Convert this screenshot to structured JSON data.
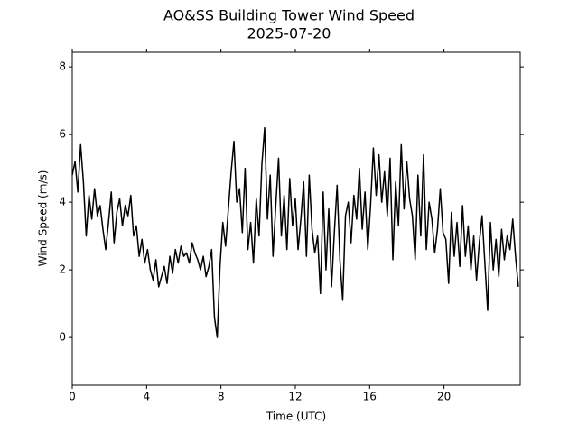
{
  "chart_data": {
    "type": "line",
    "title": "AO&SS Building Tower Wind Speed",
    "subtitle": "2025-07-20",
    "x_label": "Time (UTC)",
    "y_label": "Wind Speed (m/s)",
    "color": "#000000",
    "x": [
      0,
      0.15,
      0.3,
      0.45,
      0.6,
      0.75,
      0.9,
      1.05,
      1.2,
      1.35,
      1.5,
      1.65,
      1.8,
      1.95,
      2.1,
      2.25,
      2.4,
      2.55,
      2.7,
      2.85,
      3.0,
      3.15,
      3.3,
      3.45,
      3.6,
      3.75,
      3.9,
      4.05,
      4.2,
      4.35,
      4.5,
      4.65,
      4.8,
      4.95,
      5.1,
      5.25,
      5.4,
      5.55,
      5.7,
      5.85,
      6.0,
      6.15,
      6.3,
      6.45,
      6.6,
      6.75,
      6.9,
      7.05,
      7.2,
      7.35,
      7.5,
      7.65,
      7.8,
      7.95,
      8.1,
      8.25,
      8.4,
      8.55,
      8.7,
      8.85,
      9.0,
      9.15,
      9.3,
      9.45,
      9.6,
      9.75,
      9.9,
      10.05,
      10.2,
      10.35,
      10.5,
      10.65,
      10.8,
      10.95,
      11.1,
      11.25,
      11.4,
      11.55,
      11.7,
      11.85,
      12.0,
      12.15,
      12.3,
      12.45,
      12.6,
      12.75,
      12.9,
      13.05,
      13.2,
      13.35,
      13.5,
      13.65,
      13.8,
      13.95,
      14.1,
      14.25,
      14.4,
      14.55,
      14.7,
      14.85,
      15.0,
      15.15,
      15.3,
      15.45,
      15.6,
      15.75,
      15.9,
      16.05,
      16.2,
      16.35,
      16.5,
      16.65,
      16.8,
      16.95,
      17.1,
      17.25,
      17.4,
      17.55,
      17.7,
      17.85,
      18.0,
      18.15,
      18.3,
      18.45,
      18.6,
      18.75,
      18.9,
      19.05,
      19.2,
      19.35,
      19.5,
      19.65,
      19.8,
      19.95,
      20.1,
      20.25,
      20.4,
      20.55,
      20.7,
      20.85,
      21.0,
      21.15,
      21.3,
      21.45,
      21.6,
      21.75,
      21.9,
      22.05,
      22.2,
      22.35,
      22.5,
      22.65,
      22.8,
      22.95,
      23.1,
      23.25,
      23.4,
      23.55,
      23.7,
      23.85,
      24.0
    ],
    "values": [
      4.8,
      5.2,
      4.3,
      5.7,
      4.6,
      3.0,
      4.2,
      3.5,
      4.4,
      3.6,
      3.9,
      3.2,
      2.6,
      3.4,
      4.3,
      2.8,
      3.7,
      4.1,
      3.3,
      3.9,
      3.6,
      4.2,
      3.0,
      3.3,
      2.4,
      2.9,
      2.2,
      2.6,
      2.0,
      1.7,
      2.3,
      1.5,
      1.8,
      2.1,
      1.6,
      2.4,
      1.9,
      2.6,
      2.2,
      2.7,
      2.4,
      2.5,
      2.2,
      2.8,
      2.5,
      2.3,
      2.0,
      2.4,
      1.8,
      2.1,
      2.6,
      0.6,
      0.0,
      2.1,
      3.4,
      2.7,
      3.8,
      4.9,
      5.8,
      4.0,
      4.4,
      3.1,
      5.0,
      2.6,
      3.4,
      2.2,
      4.1,
      3.0,
      5.1,
      6.2,
      3.5,
      4.8,
      2.4,
      3.9,
      5.3,
      3.0,
      4.2,
      2.6,
      4.7,
      3.3,
      4.1,
      2.6,
      3.5,
      4.6,
      2.4,
      4.8,
      3.2,
      2.5,
      3.0,
      1.3,
      4.3,
      2.0,
      3.8,
      1.5,
      3.1,
      4.5,
      2.3,
      1.1,
      3.6,
      4.0,
      2.8,
      4.2,
      3.5,
      5.0,
      3.2,
      4.3,
      2.6,
      3.9,
      5.6,
      4.2,
      5.4,
      4.0,
      4.9,
      3.6,
      5.3,
      2.3,
      4.6,
      3.3,
      5.7,
      3.8,
      5.2,
      4.1,
      3.6,
      2.3,
      4.8,
      3.0,
      5.4,
      2.6,
      4.0,
      3.5,
      2.5,
      3.2,
      4.4,
      3.1,
      2.9,
      1.6,
      3.7,
      2.4,
      3.4,
      2.1,
      3.9,
      2.4,
      3.3,
      2.0,
      3.0,
      1.7,
      2.8,
      3.6,
      2.2,
      0.8,
      3.4,
      2.0,
      2.9,
      1.8,
      3.2,
      2.3,
      3.0,
      2.6,
      3.5,
      2.4,
      1.5
    ],
    "xlim": [
      0,
      24.1
    ],
    "ylim": [
      -1.41,
      8.43
    ],
    "xticks": [
      0,
      4,
      8,
      12,
      16,
      20
    ],
    "yticks": [
      0,
      2,
      4,
      6,
      8
    ]
  }
}
